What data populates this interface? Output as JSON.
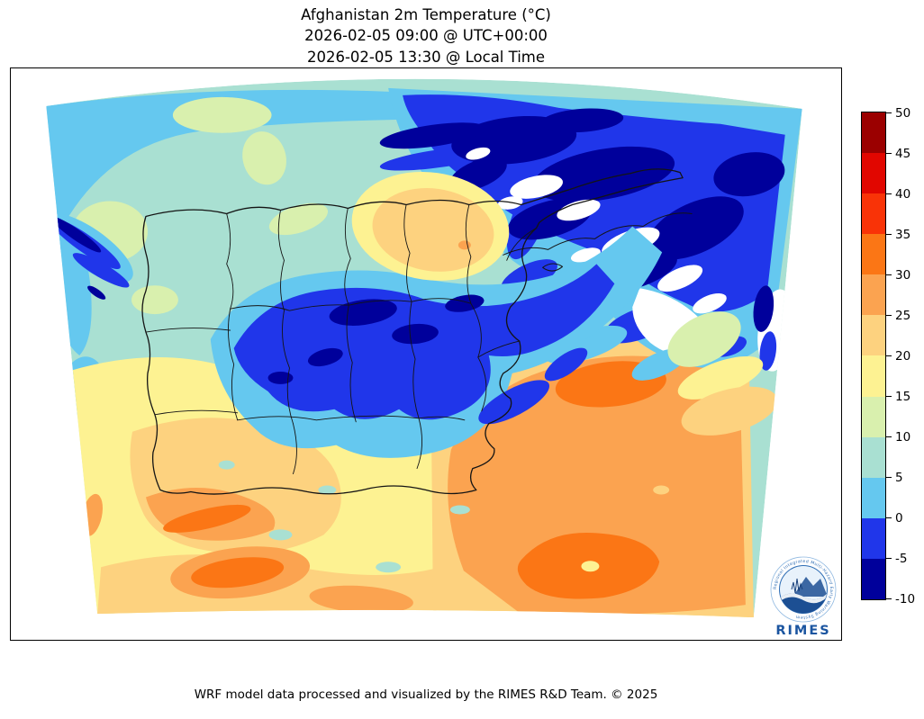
{
  "title": {
    "line1": "Afghanistan 2m Temperature (°C)",
    "line2": "2026-02-05 09:00 @ UTC+00:00",
    "line3": "2026-02-05 13:30 @ Local Time"
  },
  "footer": {
    "credit": "WRF model data processed and visualized by the RIMES R&D Team. © 2025"
  },
  "logo": {
    "name": "RIMES",
    "ring_text": "Regional Integrated Multi-Hazard Early Warning System"
  },
  "colorbar": {
    "unit": "°C",
    "ticks": [
      50,
      45,
      40,
      35,
      30,
      25,
      20,
      15,
      10,
      5,
      0,
      -5,
      -10
    ],
    "bands": [
      {
        "range": "45 to 50",
        "color": "#9b0000"
      },
      {
        "range": "40 to 45",
        "color": "#e10600"
      },
      {
        "range": "35 to 40",
        "color": "#f93307"
      },
      {
        "range": "30 to 35",
        "color": "#fb7615"
      },
      {
        "range": "25 to 30",
        "color": "#fba350"
      },
      {
        "range": "20 to 25",
        "color": "#fdd27f"
      },
      {
        "range": "15 to 20",
        "color": "#fdf292"
      },
      {
        "range": "10 to 15",
        "color": "#d9f0ae"
      },
      {
        "range": "5 to 10",
        "color": "#a9e0d2"
      },
      {
        "range": "0 to 5",
        "color": "#65c8ef"
      },
      {
        "range": "-5 to 0",
        "color": "#2036ea"
      },
      {
        "range": "-10 to -5",
        "color": "#00009b"
      }
    ],
    "below_range_color": "#ffffff"
  },
  "chart_data": {
    "type": "heatmap",
    "title": "Afghanistan 2m Temperature (°C)",
    "variable": "2m air temperature",
    "units": "°C",
    "valid_time_utc": "2026-02-05 09:00 @ UTC+00:00",
    "valid_time_local": "2026-02-05 13:30 @ Local Time",
    "levels": [
      -10,
      -5,
      0,
      5,
      10,
      15,
      20,
      25,
      30,
      35,
      40,
      45,
      50
    ],
    "palette_cold_to_hot": [
      "#00009b",
      "#2036ea",
      "#65c8ef",
      "#a9e0d2",
      "#d9f0ae",
      "#fdf292",
      "#fdd27f",
      "#fba350",
      "#fb7615",
      "#f93307",
      "#e10600",
      "#9b0000"
    ],
    "regions": [
      {
        "area": "northwest plains",
        "temp_c": "5 to 10"
      },
      {
        "area": "northern edge strip",
        "temp_c": "0 to 5"
      },
      {
        "area": "central highlands (Hindu Kush)",
        "temp_c": "-10 to 0"
      },
      {
        "area": "northeast mountains (Wakhan / Pamir)",
        "temp_c": "below -10 to -5, white where < -10"
      },
      {
        "area": "north-central foothill patch",
        "temp_c": "20 to 25"
      },
      {
        "area": "southwest deserts",
        "temp_c": "15 to 30"
      },
      {
        "area": "southeast lowlands",
        "temp_c": "25 to 35"
      }
    ]
  }
}
